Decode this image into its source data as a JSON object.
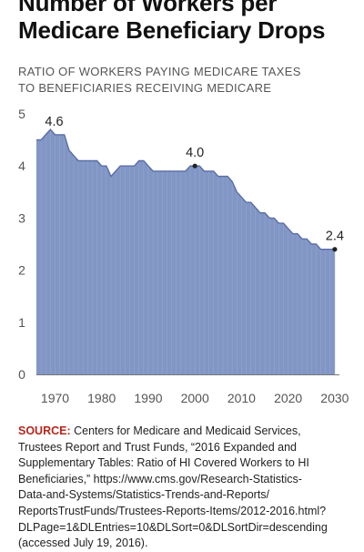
{
  "title": {
    "lines": [
      "Number of Workers per",
      "Medicare Beneficiary Drops"
    ]
  },
  "chart_data": {
    "type": "area",
    "title": "Number of Workers per Medicare Beneficiary Drops",
    "subtitle": "RATIO OF WORKERS PAYING MEDICARE TAXES TO BENEFICIARIES RECEIVING MEDICARE",
    "xlabel": "",
    "ylabel": "",
    "x_ticks": [
      "1970",
      "1980",
      "1990",
      "2000",
      "2010",
      "2020",
      "2030"
    ],
    "y_ticks": [
      "0",
      "1",
      "2",
      "3",
      "4",
      "5"
    ],
    "xlim": [
      1966,
      2031
    ],
    "ylim": [
      0,
      5
    ],
    "grid": false,
    "colors": {
      "fill": "#8196c4",
      "line": "#5a6ea8",
      "ticks": "#555555",
      "axis": "#777777",
      "annotation": "#222222"
    },
    "series": [
      {
        "x": [
          1966,
          1967,
          1968,
          1969,
          1970,
          1971,
          1972,
          1973,
          1974,
          1975,
          1976,
          1977,
          1978,
          1979,
          1980,
          1981,
          1982,
          1983,
          1984,
          1985,
          1986,
          1987,
          1988,
          1989,
          1990,
          1991,
          1992,
          1993,
          1994,
          1995,
          1996,
          1997,
          1998,
          1999,
          2000,
          2001,
          2002,
          2003,
          2004,
          2005,
          2006,
          2007,
          2008,
          2009,
          2010,
          2011,
          2012,
          2013,
          2014,
          2015,
          2016,
          2017,
          2018,
          2019,
          2020,
          2021,
          2022,
          2023,
          2024,
          2025,
          2026,
          2027,
          2028,
          2029,
          2030
        ],
        "y": [
          4.5,
          4.5,
          4.6,
          4.7,
          4.6,
          4.6,
          4.6,
          4.3,
          4.2,
          4.1,
          4.1,
          4.1,
          4.1,
          4.1,
          4.0,
          4.0,
          3.8,
          3.9,
          4.0,
          4.0,
          4.0,
          4.0,
          4.1,
          4.1,
          4.0,
          3.9,
          3.9,
          3.9,
          3.9,
          3.9,
          3.9,
          3.9,
          3.9,
          4.0,
          4.0,
          4.0,
          3.9,
          3.9,
          3.9,
          3.8,
          3.8,
          3.8,
          3.7,
          3.5,
          3.4,
          3.3,
          3.3,
          3.2,
          3.1,
          3.1,
          3.0,
          3.0,
          2.9,
          2.9,
          2.8,
          2.7,
          2.7,
          2.6,
          2.6,
          2.5,
          2.5,
          2.4,
          2.4,
          2.4,
          2.4
        ]
      }
    ],
    "annotations": [
      {
        "x": 1970,
        "y": 4.6,
        "label": "4.6",
        "marker": false
      },
      {
        "x": 2000,
        "y": 4.0,
        "label": "4.0",
        "marker": true
      },
      {
        "x": 2030,
        "y": 2.4,
        "label": "2.4",
        "marker": true
      }
    ]
  },
  "source": {
    "label": "SOURCE:",
    "lines": [
      " Centers for Medicare and Medicaid Services,",
      "Trustees Report and Trust Funds, “2016 Expanded and",
      "Supplementary Tables: Ratio of HI Covered Workers to HI",
      "Beneficiaries,” https://www.cms.gov/Research-Statistics-",
      "Data-and-Systems/Statistics-Trends-and-Reports/",
      "ReportsTrustFunds/Trustees-Reports-Items/2012-2016.html?",
      "DLPage=1&DLEntries=10&DLSort=0&DLSortDir=descending",
      "(accessed July 19, 2016)."
    ]
  }
}
